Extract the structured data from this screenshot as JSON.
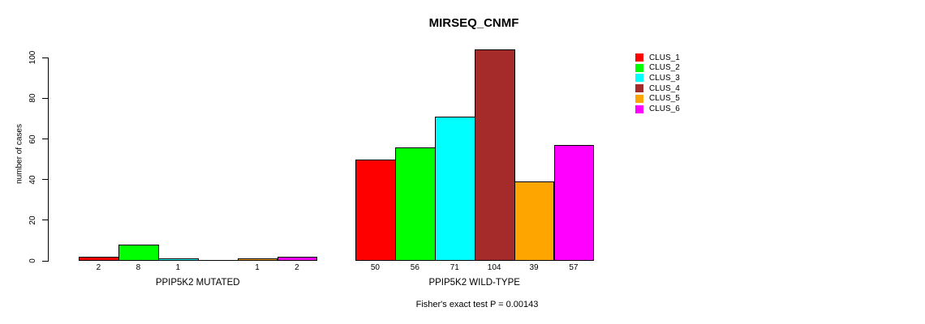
{
  "title": "MIRSEQ_CNMF",
  "ylabel": "number of cases",
  "footer": "Fisher's exact test P = 0.00143",
  "legend": [
    {
      "label": "CLUS_1",
      "color": "#FF0000"
    },
    {
      "label": "CLUS_2",
      "color": "#00FF00"
    },
    {
      "label": "CLUS_3",
      "color": "#00FFFF"
    },
    {
      "label": "CLUS_4",
      "color": "#A52A2A"
    },
    {
      "label": "CLUS_5",
      "color": "#FFA500"
    },
    {
      "label": "CLUS_6",
      "color": "#FF00FF"
    }
  ],
  "chart_data": {
    "type": "bar",
    "title": "MIRSEQ_CNMF",
    "ylabel": "number of cases",
    "ylim": [
      0,
      100
    ],
    "yticks": [
      0,
      20,
      40,
      60,
      80,
      100
    ],
    "series_names": [
      "CLUS_1",
      "CLUS_2",
      "CLUS_3",
      "CLUS_4",
      "CLUS_5",
      "CLUS_6"
    ],
    "colors": [
      "#FF0000",
      "#00FF00",
      "#00FFFF",
      "#A52A2A",
      "#FFA500",
      "#FF00FF"
    ],
    "groups": [
      {
        "label": "PPIP5K2 MUTATED",
        "values": [
          2,
          8,
          1,
          0,
          1,
          2
        ],
        "bar_labels": [
          "2",
          "8",
          "1",
          "",
          "1",
          "2"
        ]
      },
      {
        "label": "PPIP5K2 WILD-TYPE",
        "values": [
          50,
          56,
          71,
          104,
          39,
          57
        ],
        "bar_labels": [
          "50",
          "56",
          "71",
          "104",
          "39",
          "57"
        ]
      }
    ],
    "annotation": "Fisher's exact test P = 0.00143",
    "legend_position": "right",
    "grid": false
  }
}
